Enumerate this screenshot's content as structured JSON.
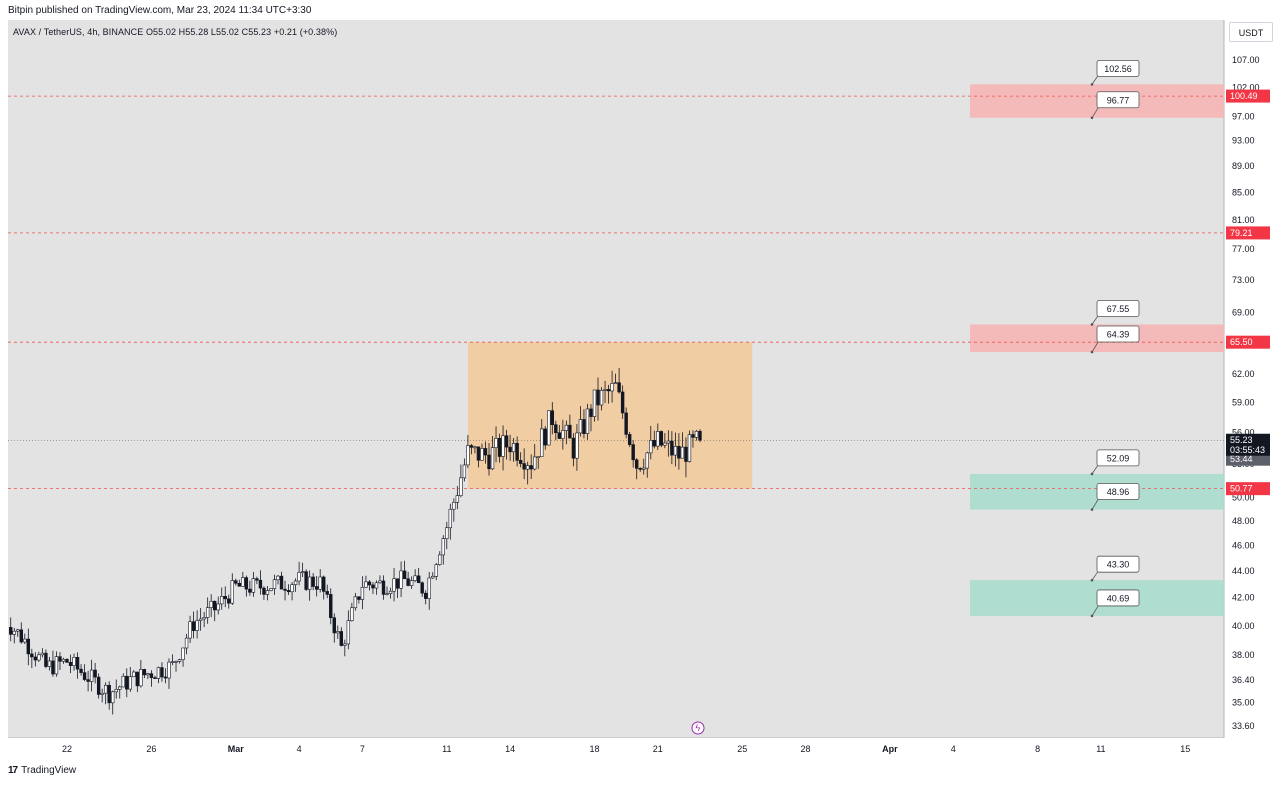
{
  "header": {
    "publisher": "Bitpin published on TradingView.com, Mar 23, 2024 11:34 UTC+3:30",
    "symbol_info": "AVAX / TetherUS, 4h, BINANCE  O55.02  H55.28  L55.02  C55.23  +0.21 (+0.38%)",
    "currency": "USDT"
  },
  "footer": {
    "logo": "17",
    "brand": "TradingView"
  },
  "colors": {
    "background": "#e3e3e3",
    "candle": "#131722",
    "dashed_line": "#ef5350",
    "range_box": "#f5c58f",
    "resistance_zone": "#f5b5b5",
    "support_zone": "#a8dccc",
    "price_tag": "#f23645",
    "current_price_tag": "#131722",
    "last_price_tag": "#5d606b"
  },
  "chart_data": {
    "type": "candlestick",
    "symbol": "AVAX / TetherUS",
    "interval": "4h",
    "exchange": "BINANCE",
    "ylim": [
      33.0,
      112.0
    ],
    "y_scale": "log",
    "y_ticks": [
      "107.00",
      "102.00",
      "97.00",
      "93.00",
      "89.00",
      "85.00",
      "81.00",
      "77.00",
      "73.00",
      "69.00",
      "62.00",
      "59.00",
      "56.00",
      "53.00",
      "50.00",
      "48.00",
      "46.00",
      "44.00",
      "42.00",
      "40.00",
      "38.00",
      "36.40",
      "35.00",
      "33.60"
    ],
    "x_ticks": [
      "22",
      "26",
      "Mar",
      "4",
      "7",
      "11",
      "14",
      "18",
      "21",
      "25",
      "28",
      "Apr",
      "4",
      "8",
      "11",
      "15"
    ],
    "horizontal_levels": [
      {
        "price": 100.49,
        "label": "100.49"
      },
      {
        "price": 79.21,
        "label": "79.21"
      },
      {
        "price": 65.5,
        "label": "65.50"
      },
      {
        "price": 50.77,
        "label": "50.77"
      }
    ],
    "current_price": {
      "price": 55.23,
      "label": "55.23",
      "countdown": "03:55:43"
    },
    "last_price": {
      "price": 53.44,
      "label": "53.44"
    },
    "range_box": {
      "from": "Mar 12",
      "to": "Mar 25",
      "top": 65.5,
      "bottom": 50.77
    },
    "zones": [
      {
        "kind": "resistance",
        "top": 102.56,
        "bottom": 96.77,
        "top_label": "102.56",
        "bottom_label": "96.77"
      },
      {
        "kind": "resistance",
        "top": 67.55,
        "bottom": 64.39,
        "top_label": "67.55",
        "bottom_label": "64.39"
      },
      {
        "kind": "support",
        "top": 52.09,
        "bottom": 48.96,
        "top_label": "52.09",
        "bottom_label": "48.96"
      },
      {
        "kind": "support",
        "top": 43.3,
        "bottom": 40.69,
        "top_label": "43.30",
        "bottom_label": "40.69"
      }
    ],
    "price_path": [
      [
        "Feb 19",
        40.5
      ],
      [
        "Feb 20",
        39.0
      ],
      [
        "Feb 21",
        37.2
      ],
      [
        "Feb 22",
        37.6
      ],
      [
        "Feb 23",
        36.6
      ],
      [
        "Feb 24",
        35.6
      ],
      [
        "Feb 25",
        36.4
      ],
      [
        "Feb 26",
        36.9
      ],
      [
        "Feb 27",
        37.3
      ],
      [
        "Feb 28",
        40.2
      ],
      [
        "Feb 29",
        41.2
      ],
      [
        "Mar 1",
        42.8
      ],
      [
        "Mar 2",
        42.8
      ],
      [
        "Mar 3",
        43.0
      ],
      [
        "Mar 4",
        43.3
      ],
      [
        "Mar 5",
        43.1
      ],
      [
        "Mar 6",
        38.5
      ],
      [
        "Mar 7",
        43.0
      ],
      [
        "Mar 8",
        43.0
      ],
      [
        "Mar 9",
        43.3
      ],
      [
        "Mar 10",
        42.6
      ],
      [
        "Mar 11",
        47.5
      ],
      [
        "Mar 12",
        54.0
      ],
      [
        "Mar 13",
        53.8
      ],
      [
        "Mar 14",
        55.0
      ],
      [
        "Mar 15",
        53.2
      ],
      [
        "Mar 16",
        57.5
      ],
      [
        "Mar 17",
        54.5
      ],
      [
        "Mar 18",
        59.0
      ],
      [
        "Mar 19",
        60.5
      ],
      [
        "Mar 20",
        53.0
      ],
      [
        "Mar 21",
        55.0
      ],
      [
        "Mar 22",
        53.8
      ],
      [
        "Mar 23",
        55.23
      ]
    ]
  }
}
